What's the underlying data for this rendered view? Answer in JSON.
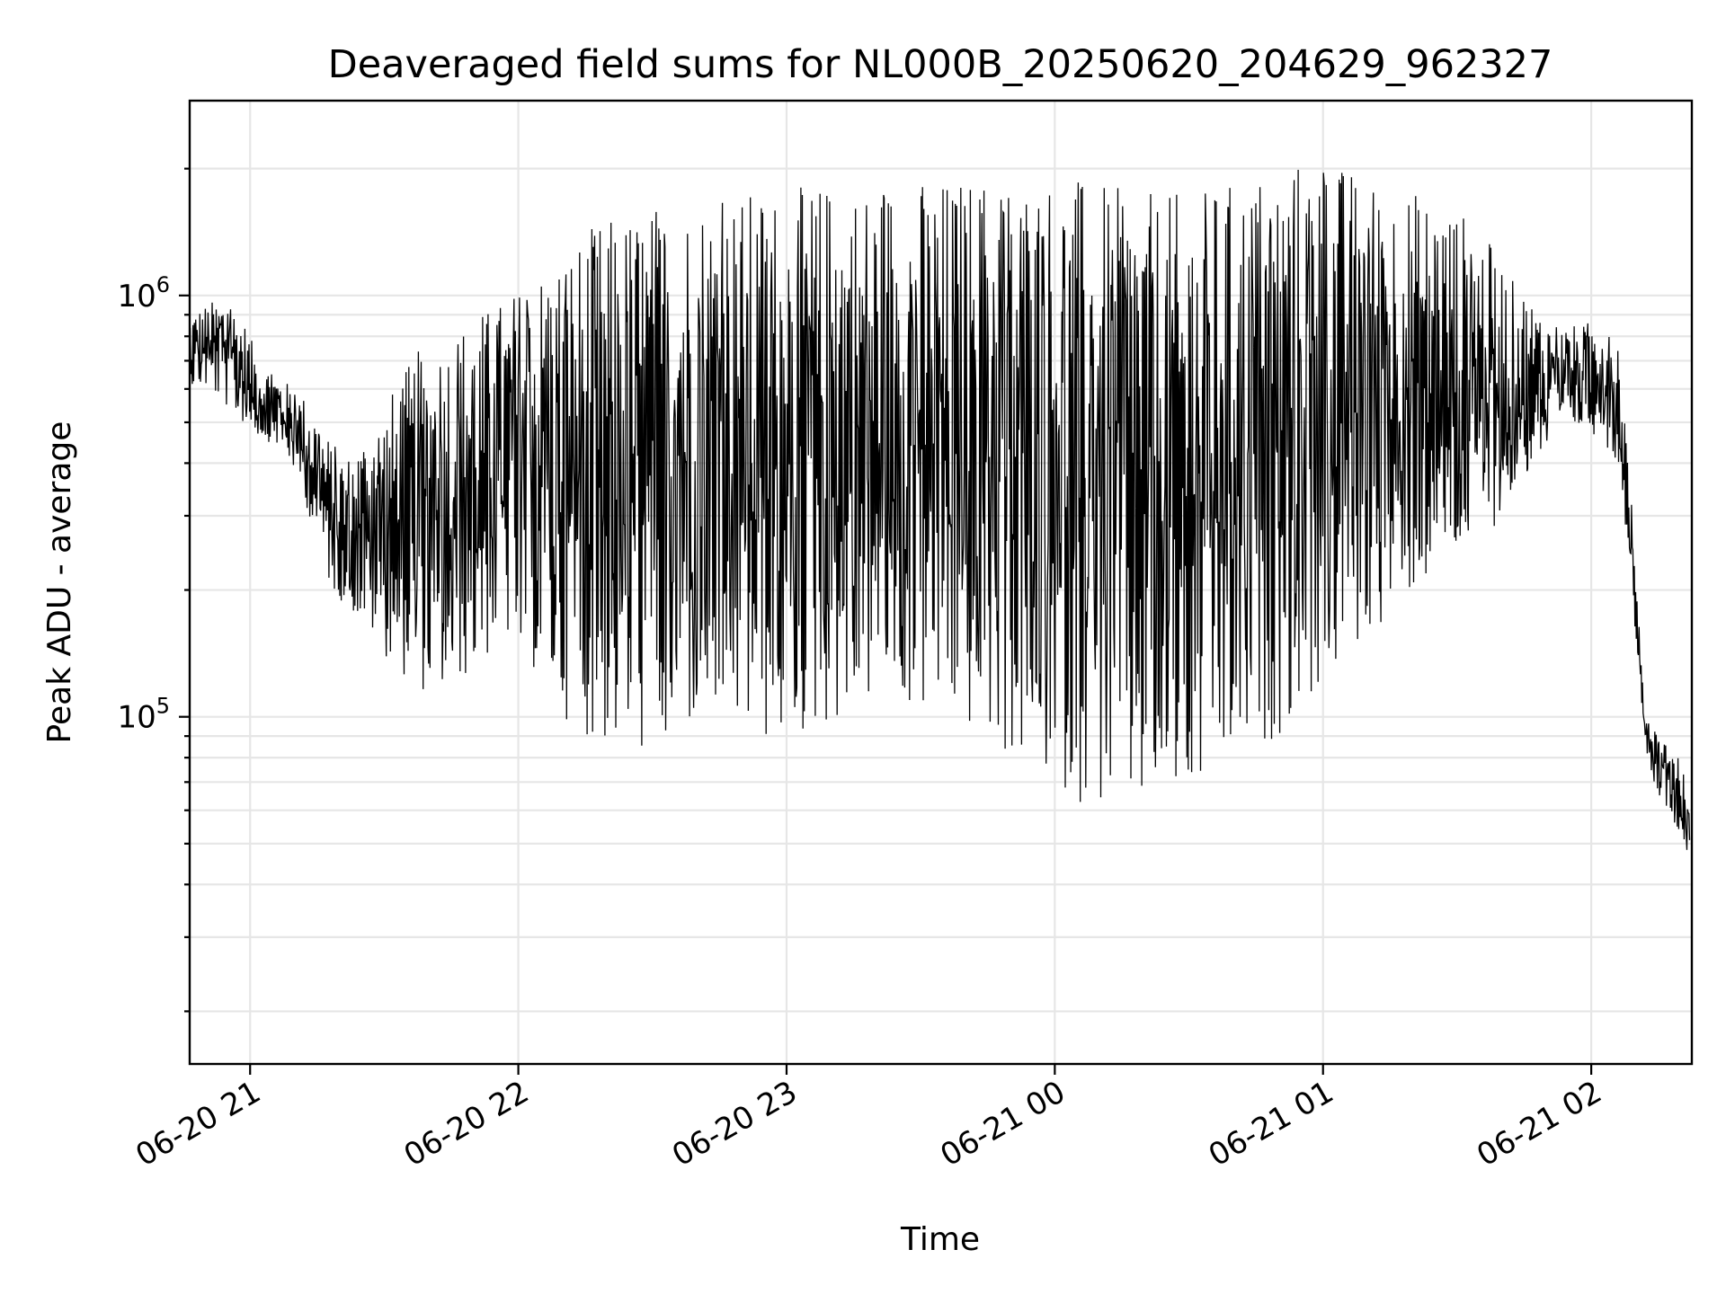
{
  "chart_data": {
    "type": "line",
    "title": "Deaveraged field sums for NL000B_20250620_204629_962327",
    "xlabel": "Time",
    "ylabel": "Peak ADU - average",
    "yscale": "log",
    "grid": true,
    "legend": false,
    "x_tick_labels": [
      "06-20 21",
      "06-20 22",
      "06-20 23",
      "06-21 00",
      "06-21 01",
      "06-21 02"
    ],
    "x_tick_values": [
      "2025-06-20T21:00",
      "2025-06-20T22:00",
      "2025-06-20T23:00",
      "2025-06-21T00:00",
      "2025-06-21T01:00",
      "2025-06-21T02:00"
    ],
    "xlim": [
      "2025-06-20T20:46:29",
      "2025-06-21T02:22:30"
    ],
    "y_tick_labels": [
      {
        "base": "10",
        "exp": "5",
        "value": 100000
      },
      {
        "base": "10",
        "exp": "6",
        "value": 1000000
      }
    ],
    "ylim": [
      15000,
      2900000
    ],
    "line_color": "#000000",
    "series": [
      {
        "x": [
          "20:46",
          "20:50",
          "20:54",
          "20:58",
          "21:02",
          "21:06",
          "21:10",
          "21:14",
          "21:18",
          "21:22",
          "21:26",
          "21:30",
          "21:34",
          "21:38",
          "21:42",
          "21:46",
          "21:50",
          "21:54",
          "21:58",
          "22:02",
          "22:06",
          "22:10",
          "22:14",
          "22:18",
          "22:22",
          "22:26",
          "22:30",
          "22:34",
          "22:38",
          "22:42",
          "22:46",
          "22:50",
          "22:54",
          "22:58",
          "23:02",
          "23:06",
          "23:10",
          "23:14",
          "23:18",
          "23:22",
          "23:26",
          "23:30",
          "23:34",
          "23:38",
          "23:42",
          "23:46",
          "23:50",
          "23:54",
          "23:58",
          "00:02",
          "00:06",
          "00:10",
          "00:14",
          "00:18",
          "00:22",
          "00:26",
          "00:30",
          "00:34",
          "00:38",
          "00:42",
          "00:46",
          "00:50",
          "00:54",
          "00:58",
          "01:02",
          "01:06",
          "01:10",
          "01:14",
          "01:18",
          "01:22",
          "01:26",
          "01:30",
          "01:34",
          "01:38",
          "01:42",
          "01:46",
          "01:50",
          "01:54",
          "01:58",
          "02:02",
          "02:06",
          "02:08",
          "02:10",
          "02:12",
          "02:14",
          "02:16",
          "02:18",
          "02:20",
          "02:22"
        ],
        "y_low": [
          600000,
          600000,
          550000,
          500000,
          460000,
          440000,
          380000,
          280000,
          200000,
          180000,
          160000,
          140000,
          125000,
          115000,
          110000,
          118000,
          125000,
          140000,
          150000,
          135000,
          115000,
          100000,
          92000,
          85000,
          82000,
          80000,
          82000,
          85000,
          90000,
          95000,
          92000,
          88000,
          85000,
          84000,
          86000,
          90000,
          95000,
          100000,
          105000,
          110000,
          105000,
          100000,
          98000,
          95000,
          90000,
          84000,
          78000,
          72000,
          70000,
          66000,
          62000,
          60000,
          58000,
          57000,
          58000,
          60000,
          62000,
          65000,
          70000,
          75000,
          82000,
          90000,
          100000,
          110000,
          120000,
          135000,
          150000,
          170000,
          185000,
          200000,
          215000,
          230000,
          250000,
          280000,
          320000,
          380000,
          420000,
          470000,
          480000,
          460000,
          400000,
          260000,
          150000,
          85000,
          70000,
          62000,
          58000,
          52000,
          45000
        ],
        "y_high": [
          900000,
          950000,
          1000000,
          900000,
          700000,
          650000,
          600000,
          550000,
          450000,
          420000,
          480000,
          550000,
          650000,
          750000,
          800000,
          850000,
          900000,
          950000,
          1000000,
          1100000,
          1200000,
          1300000,
          1400000,
          1500000,
          1550000,
          1600000,
          1650000,
          1700000,
          1700000,
          1750000,
          1750000,
          1750000,
          1800000,
          1800000,
          1800000,
          1850000,
          1850000,
          1850000,
          1850000,
          1900000,
          1900000,
          1900000,
          1900000,
          1900000,
          1950000,
          1950000,
          1950000,
          1950000,
          1950000,
          1950000,
          1900000,
          1850000,
          1800000,
          1800000,
          1750000,
          1750000,
          1750000,
          1800000,
          1850000,
          1900000,
          2000000,
          2050000,
          2100000,
          2150000,
          2100000,
          2000000,
          1900000,
          1850000,
          1800000,
          1750000,
          1700000,
          1600000,
          1500000,
          1300000,
          1100000,
          1000000,
          900000,
          850000,
          850000,
          900000,
          800000,
          450000,
          200000,
          100000,
          95000,
          90000,
          85000,
          80000,
          60000
        ]
      }
    ]
  }
}
